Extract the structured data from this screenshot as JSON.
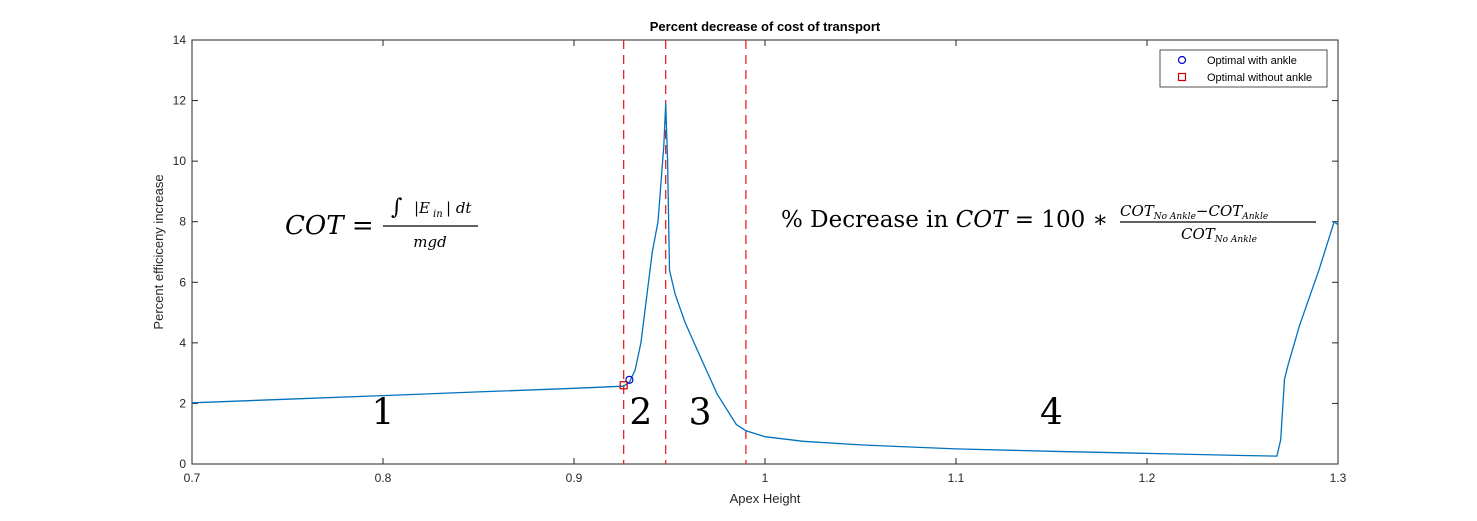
{
  "chart_data": {
    "type": "line",
    "title": "Percent decrease of cost of transport",
    "xlabel": "Apex Height",
    "ylabel": "Percent efficiceny increase",
    "xlim": [
      0.7,
      1.3
    ],
    "ylim": [
      0,
      14
    ],
    "xticks": [
      0.7,
      0.8,
      0.9,
      1,
      1.1,
      1.2,
      1.3
    ],
    "xtick_labels": [
      "0.7",
      "0.8",
      "0.9",
      "1",
      "1.1",
      "1.2",
      "1.3"
    ],
    "yticks": [
      0,
      2,
      4,
      6,
      8,
      10,
      12,
      14
    ],
    "ytick_labels": [
      "0",
      "2",
      "4",
      "6",
      "8",
      "10",
      "12",
      "14"
    ],
    "grid": false,
    "legend_position": "top-right",
    "series": [
      {
        "color": "#0072BD",
        "x": [
          0.7,
          0.75,
          0.8,
          0.85,
          0.9,
          0.926,
          0.929,
          0.932,
          0.935,
          0.938,
          0.941,
          0.944,
          0.947,
          0.948,
          0.949,
          0.95,
          0.953,
          0.958,
          0.965,
          0.975,
          0.985,
          0.99,
          1.0,
          1.02,
          1.05,
          1.1,
          1.15,
          1.2,
          1.25,
          1.268,
          1.27,
          1.272,
          1.274,
          1.28,
          1.29,
          1.298,
          1.3
        ],
        "y": [
          2.02,
          2.14,
          2.26,
          2.38,
          2.5,
          2.57,
          2.7,
          3.1,
          4.0,
          5.5,
          7.0,
          8.0,
          10.5,
          11.9,
          10.0,
          6.4,
          5.6,
          4.7,
          3.7,
          2.3,
          1.3,
          1.1,
          0.9,
          0.75,
          0.63,
          0.5,
          0.42,
          0.35,
          0.28,
          0.26,
          0.8,
          2.8,
          3.3,
          4.6,
          6.4,
          8.0,
          7.9
        ]
      }
    ],
    "boundaries": [
      0.926,
      0.948,
      0.99
    ],
    "points": [
      {
        "name": "Optimal with ankle",
        "marker": "circle",
        "color": "#0000cc",
        "x": 0.929,
        "y": 2.78
      },
      {
        "name": "Optimal without ankle",
        "marker": "square",
        "color": "#cc0000",
        "x": 0.926,
        "y": 2.6
      }
    ],
    "region_labels": [
      {
        "text": "1",
        "x": 0.8,
        "y": 1.7
      },
      {
        "text": "2",
        "x": 0.935,
        "y": 1.7
      },
      {
        "text": "3",
        "x": 0.966,
        "y": 1.7
      },
      {
        "text": "4",
        "x": 1.15,
        "y": 1.7
      }
    ],
    "annotations": {
      "cot_lhs": "COT =",
      "cot_numerator_integral": "∫",
      "cot_numerator_body": "|E",
      "cot_numerator_sub": "in",
      "cot_numerator_tail": "|  dt",
      "cot_denominator": "mgd",
      "pct_lhs": "% Decrease in ",
      "pct_cot": "COT",
      "pct_eq": " = 100 ∗",
      "pct_num_a": "COT",
      "pct_num_a_sub": "No  Ankle",
      "pct_num_minus": "−",
      "pct_num_b": "COT",
      "pct_num_b_sub": "Ankle",
      "pct_den": "COT",
      "pct_den_sub": "No  Ankle"
    }
  }
}
